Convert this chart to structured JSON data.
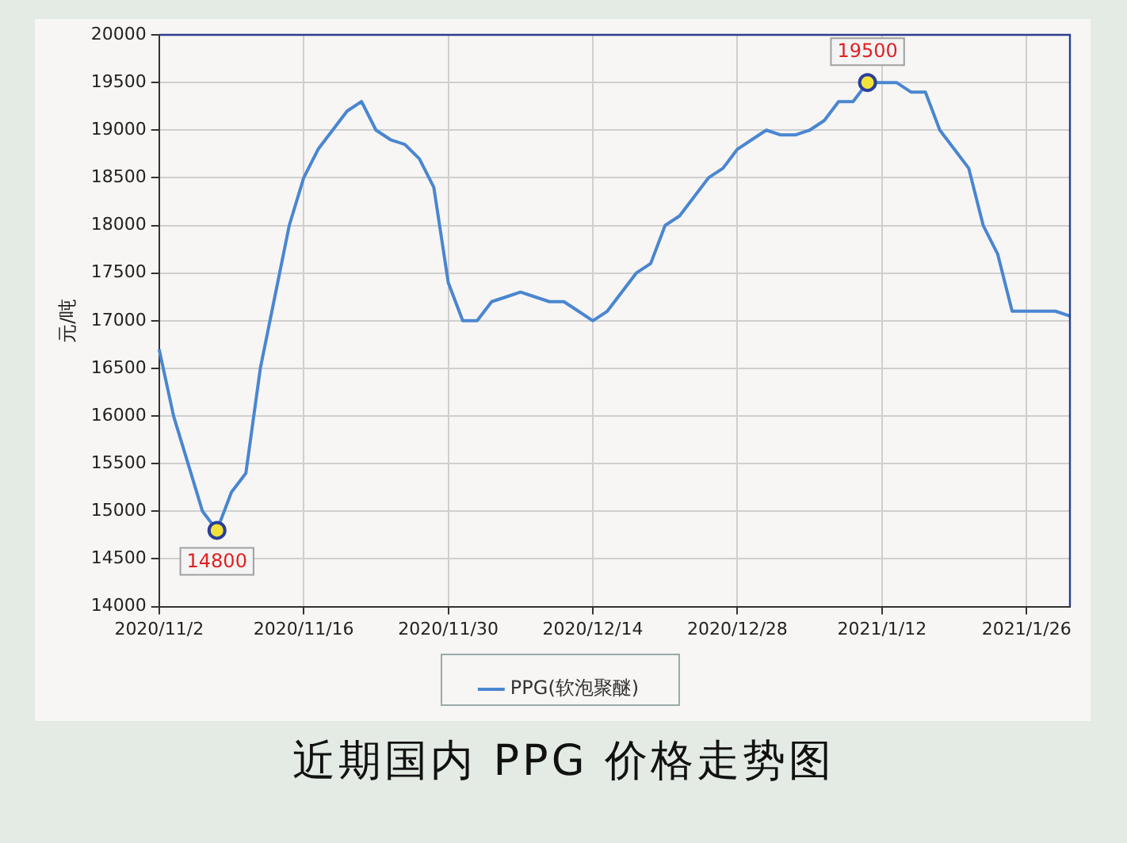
{
  "chart_data": {
    "type": "line",
    "title": "近期国内 PPG 价格走势图",
    "ylabel": "元/吨",
    "categories": [
      "2020/11/2",
      null,
      null,
      null,
      null,
      null,
      null,
      null,
      null,
      null,
      "2020/11/16",
      null,
      null,
      null,
      null,
      null,
      null,
      null,
      null,
      null,
      "2020/11/30",
      null,
      null,
      null,
      null,
      null,
      null,
      null,
      null,
      null,
      "2020/12/14",
      null,
      null,
      null,
      null,
      null,
      null,
      null,
      null,
      null,
      "2020/12/28",
      null,
      null,
      null,
      null,
      null,
      null,
      null,
      null,
      null,
      "2021/1/12",
      null,
      null,
      null,
      null,
      null,
      null,
      null,
      null,
      null,
      "2021/1/26",
      null,
      null,
      null
    ],
    "series": [
      {
        "name": "PPG(软泡聚醚)",
        "color": "#4a86d0",
        "values": [
          16700,
          16000,
          15500,
          15000,
          14800,
          15200,
          15400,
          16500,
          17250,
          18000,
          18500,
          18800,
          19000,
          19200,
          19300,
          19000,
          18900,
          18850,
          18700,
          18400,
          17400,
          17000,
          17000,
          17200,
          17250,
          17300,
          17250,
          17200,
          17200,
          17100,
          17000,
          17100,
          17300,
          17500,
          17600,
          18000,
          18100,
          18300,
          18500,
          18600,
          18800,
          18900,
          19000,
          18950,
          18950,
          19000,
          19100,
          19300,
          19300,
          19500,
          19500,
          19500,
          19400,
          19400,
          19000,
          18800,
          18600,
          18000,
          17700,
          17100,
          17100,
          17100,
          17100,
          17050
        ],
        "value_labels": [
          null,
          null,
          null,
          null,
          "14800",
          null,
          null,
          null,
          null,
          null,
          null,
          null,
          null,
          null,
          null,
          null,
          null,
          null,
          null,
          null,
          null,
          null,
          null,
          null,
          null,
          null,
          null,
          null,
          null,
          null,
          null,
          null,
          null,
          null,
          null,
          null,
          null,
          null,
          null,
          null,
          null,
          null,
          null,
          null,
          null,
          null,
          null,
          null,
          null,
          "19500",
          null,
          null,
          null,
          null,
          null,
          null,
          null,
          null,
          null,
          null,
          null,
          null,
          null,
          null
        ]
      }
    ],
    "ylim": [
      14000,
      20000
    ],
    "yticks": [
      14000,
      14500,
      15000,
      15500,
      16000,
      16500,
      17000,
      17500,
      18000,
      18500,
      19000,
      19500,
      20000
    ],
    "grid": true,
    "legend": "bottom",
    "marker": "none",
    "line_style": "solid"
  }
}
